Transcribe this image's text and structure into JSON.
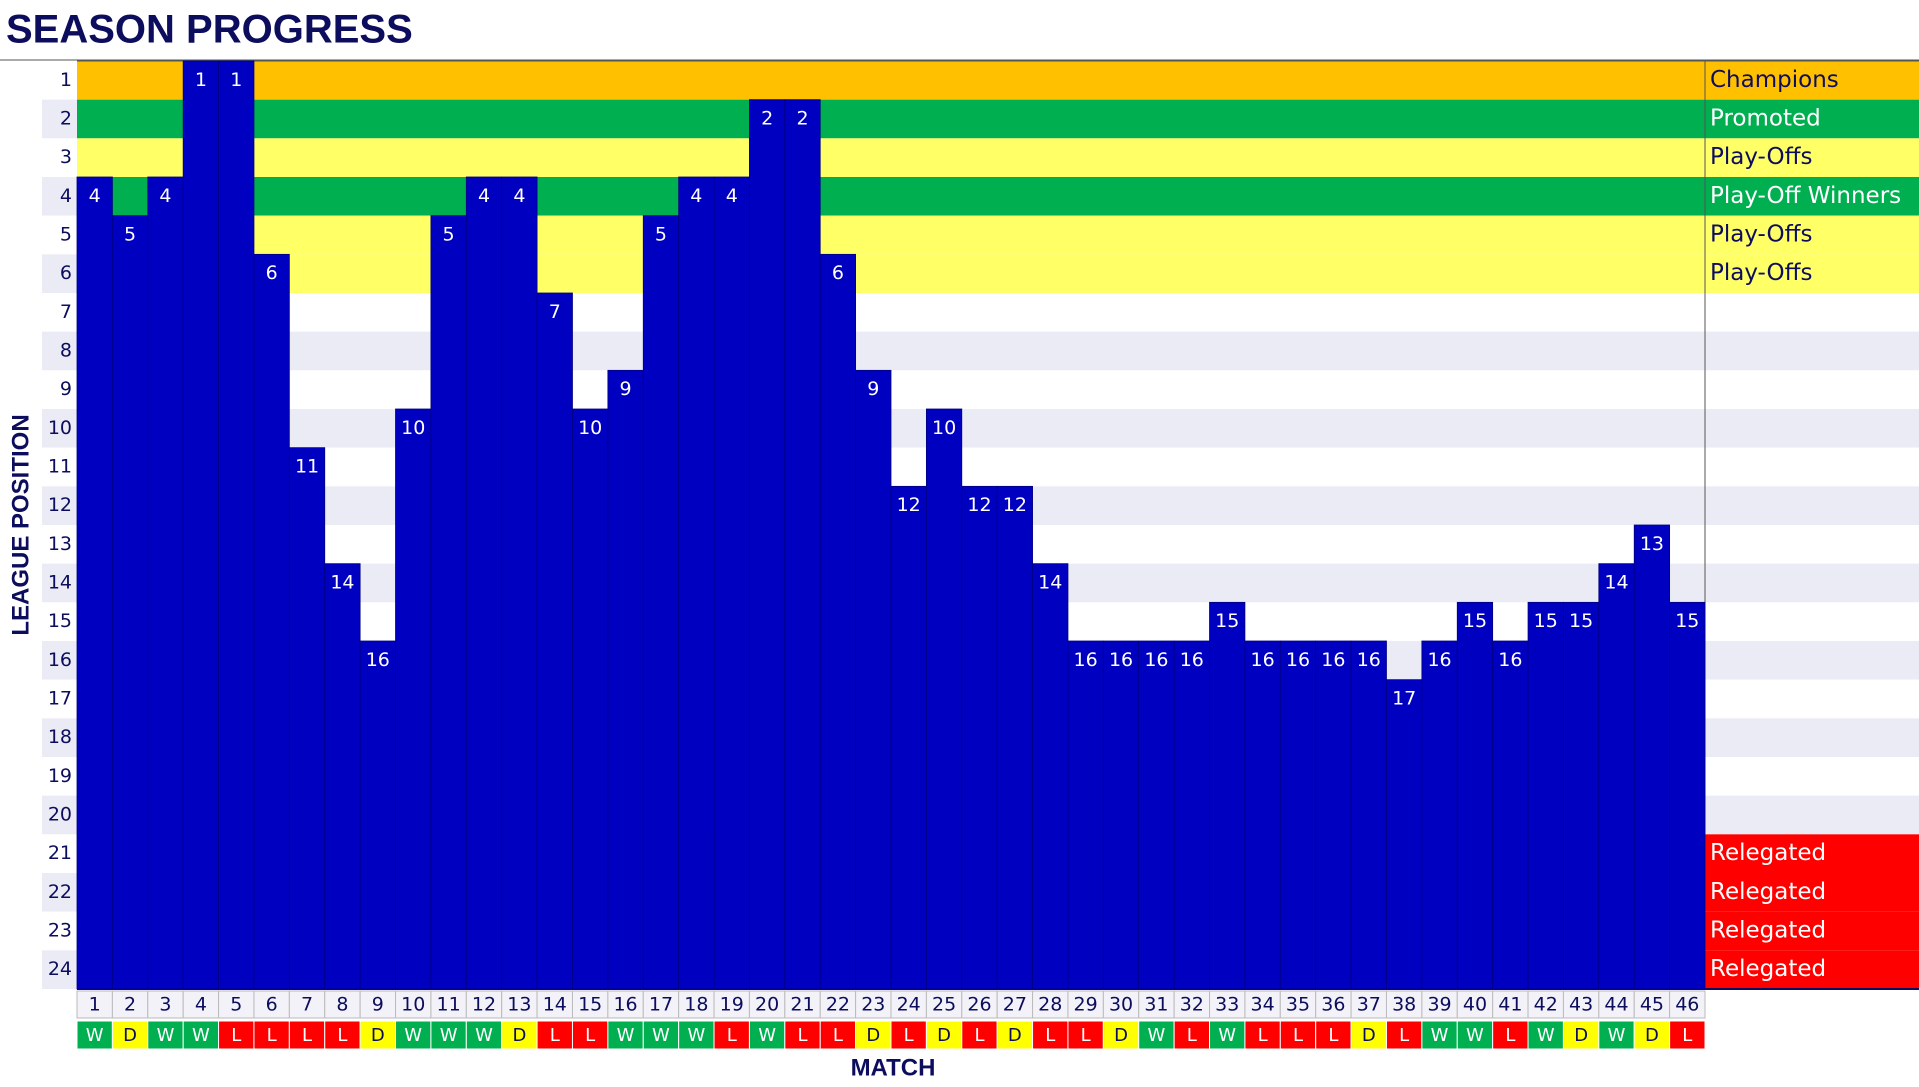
{
  "chart_data": {
    "type": "bar",
    "title": "SEASON PROGRESS",
    "x_label": "MATCH",
    "y_label": "LEAGUE POSITION",
    "categories": [
      1,
      2,
      3,
      4,
      5,
      6,
      7,
      8,
      9,
      10,
      11,
      12,
      13,
      14,
      15,
      16,
      17,
      18,
      19,
      20,
      21,
      22,
      23,
      24,
      25,
      26,
      27,
      28,
      29,
      30,
      31,
      32,
      33,
      34,
      35,
      36,
      37,
      38,
      39,
      40,
      41,
      42,
      43,
      44,
      45,
      46
    ],
    "values": [
      4,
      5,
      4,
      1,
      1,
      6,
      11,
      14,
      16,
      10,
      5,
      4,
      4,
      7,
      10,
      9,
      5,
      4,
      4,
      2,
      2,
      6,
      9,
      12,
      10,
      12,
      12,
      14,
      16,
      16,
      16,
      16,
      15,
      16,
      16,
      16,
      16,
      17,
      16,
      15,
      16,
      15,
      15,
      14,
      13,
      15
    ],
    "color": "#0000c0",
    "results": [
      "W",
      "D",
      "W",
      "W",
      "L",
      "L",
      "L",
      "L",
      "D",
      "W",
      "W",
      "W",
      "D",
      "L",
      "L",
      "W",
      "W",
      "W",
      "L",
      "W",
      "L",
      "L",
      "D",
      "L",
      "D",
      "L",
      "D",
      "L",
      "L",
      "D",
      "W",
      "L",
      "W",
      "L",
      "L",
      "L",
      "D",
      "L",
      "W",
      "W",
      "L",
      "W",
      "D",
      "W",
      "D",
      "L"
    ],
    "result_colors": {
      "W": "#00b050",
      "D": "#ffff00",
      "L": "#ff0000"
    },
    "ylim": [
      24.5,
      0.5
    ],
    "yticks": [
      1,
      2,
      3,
      4,
      5,
      6,
      7,
      8,
      9,
      10,
      11,
      12,
      13,
      14,
      15,
      16,
      17,
      18,
      19,
      20,
      21,
      22,
      23,
      24
    ],
    "band_colors": [
      "#ffc000",
      "#00b050",
      "#ffff66",
      "#00b050",
      "#ffff66",
      "#ffff66",
      "#ffffff",
      "#ebebf5",
      "#ffffff",
      "#ebebf5",
      "#ffffff",
      "#ebebf5",
      "#ffffff",
      "#ebebf5",
      "#ffffff",
      "#ebebf5",
      "#ffffff",
      "#ebebf5",
      "#ffffff",
      "#ebebf5",
      "#ff0000",
      "#ff0000",
      "#ff0000",
      "#ff0000"
    ],
    "band_labels": [
      "Champions",
      "Promoted",
      "Play-Offs",
      "Play-Off Winners",
      "Play-Offs",
      "Play-Offs",
      null,
      null,
      null,
      null,
      null,
      null,
      null,
      null,
      null,
      null,
      null,
      null,
      null,
      null,
      "Relegated",
      "Relegated",
      "Relegated",
      "Relegated"
    ]
  }
}
